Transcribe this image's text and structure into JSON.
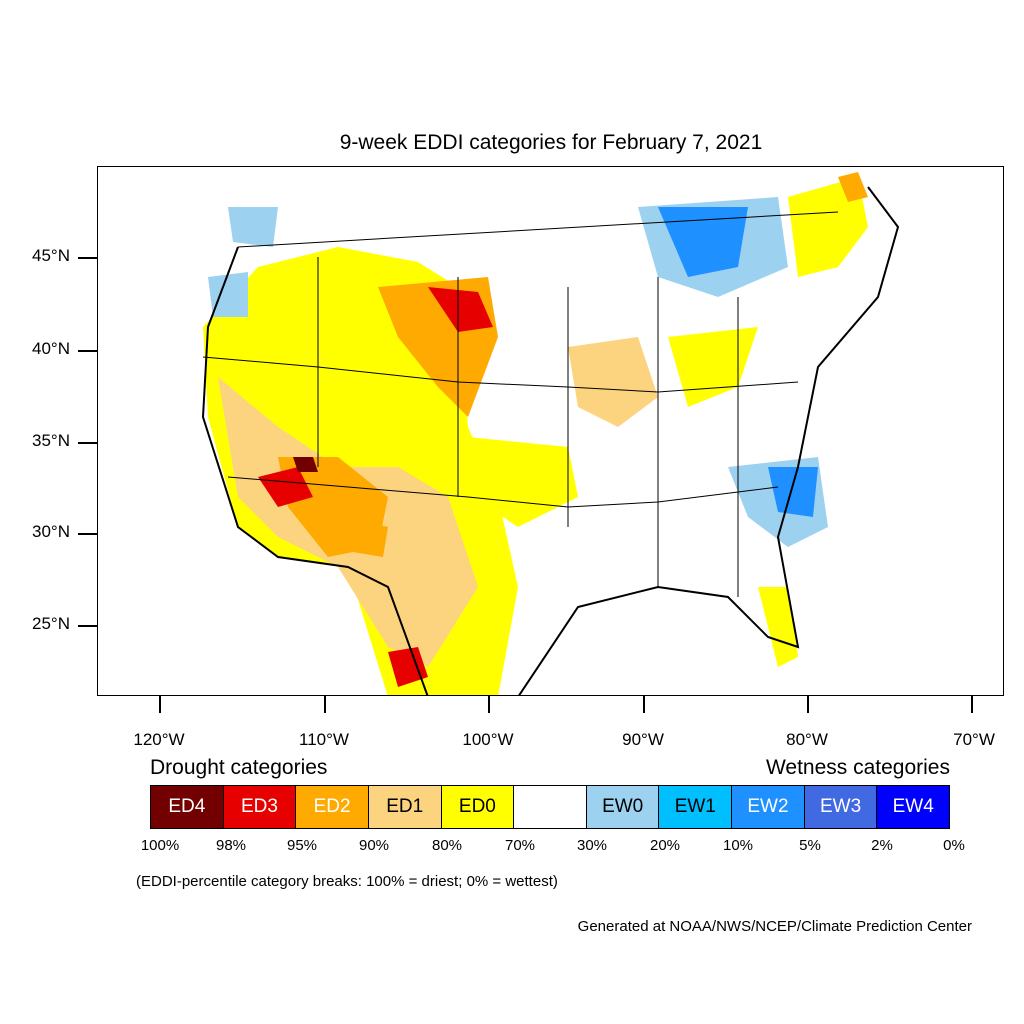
{
  "title": "9-week EDDI categories for February 7, 2021",
  "lat_labels": [
    "45°N",
    "40°N",
    "35°N",
    "30°N",
    "25°N"
  ],
  "lon_labels": [
    "120°W",
    "110°W",
    "100°W",
    "90°W",
    "80°W",
    "70°W"
  ],
  "legend": {
    "drought_heading": "Drought categories",
    "wetness_heading": "Wetness categories",
    "categories": [
      {
        "label": "ED4",
        "color": "#730000",
        "text_color": "#ffffff"
      },
      {
        "label": "ED3",
        "color": "#e60000",
        "text_color": "#ffffff"
      },
      {
        "label": "ED2",
        "color": "#ffaa00",
        "text_color": "#ffffff"
      },
      {
        "label": "ED1",
        "color": "#fcd37f",
        "text_color": "#000000"
      },
      {
        "label": "ED0",
        "color": "#ffff00",
        "text_color": "#000000"
      },
      {
        "label": "",
        "color": "#ffffff",
        "text_color": "#000000"
      },
      {
        "label": "EW0",
        "color": "#9dd1f0",
        "text_color": "#000000"
      },
      {
        "label": "EW1",
        "color": "#00bfff",
        "text_color": "#000000"
      },
      {
        "label": "EW2",
        "color": "#1e90ff",
        "text_color": "#ffffff"
      },
      {
        "label": "EW3",
        "color": "#4169e1",
        "text_color": "#ffffff"
      },
      {
        "label": "EW4",
        "color": "#0000ff",
        "text_color": "#ffffff"
      }
    ],
    "breaks": [
      "100%",
      "98%",
      "95%",
      "90%",
      "80%",
      "70%",
      "30%",
      "20%",
      "10%",
      "5%",
      "2%",
      "0%"
    ]
  },
  "note": "(EDDI-percentile category breaks: 100% = driest; 0% = wettest)",
  "credit": "Generated at NOAA/NWS/NCEP/Climate Prediction Center"
}
